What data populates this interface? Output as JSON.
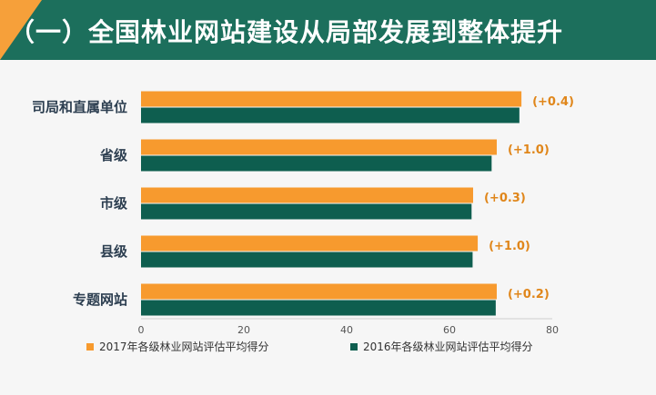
{
  "header": {
    "title": "（一）全国林业网站建设从局部发展到整体提升"
  },
  "colors": {
    "header_bg": "#1c6f5c",
    "header_accent": "#f6a03a",
    "series_2017": "#f79a2e",
    "series_2016": "#0e5e4f",
    "annotation": "#e0861a"
  },
  "chart_data": {
    "type": "bar",
    "orientation": "horizontal",
    "categories": [
      "司局和直属单位",
      "省级",
      "市级",
      "县级",
      "专题网站"
    ],
    "series": [
      {
        "name": "2017年各级林业网站评估平均得分",
        "color": "#f79a2e",
        "values": [
          74.0,
          69.2,
          64.6,
          65.5,
          69.2
        ]
      },
      {
        "name": "2016年各级林业网站评估平均得分",
        "color": "#0e5e4f",
        "values": [
          73.6,
          68.2,
          64.3,
          64.5,
          69.0
        ]
      }
    ],
    "annotations": [
      "(+0.4)",
      "(+1.0)",
      "(+0.3)",
      "(+1.0)",
      "(+0.2)"
    ],
    "xlim": [
      0,
      80
    ],
    "xticks": [
      "0",
      "20",
      "40",
      "60",
      "80"
    ],
    "grid": false,
    "legend_position": "bottom",
    "title": "",
    "xlabel": "",
    "ylabel": ""
  }
}
